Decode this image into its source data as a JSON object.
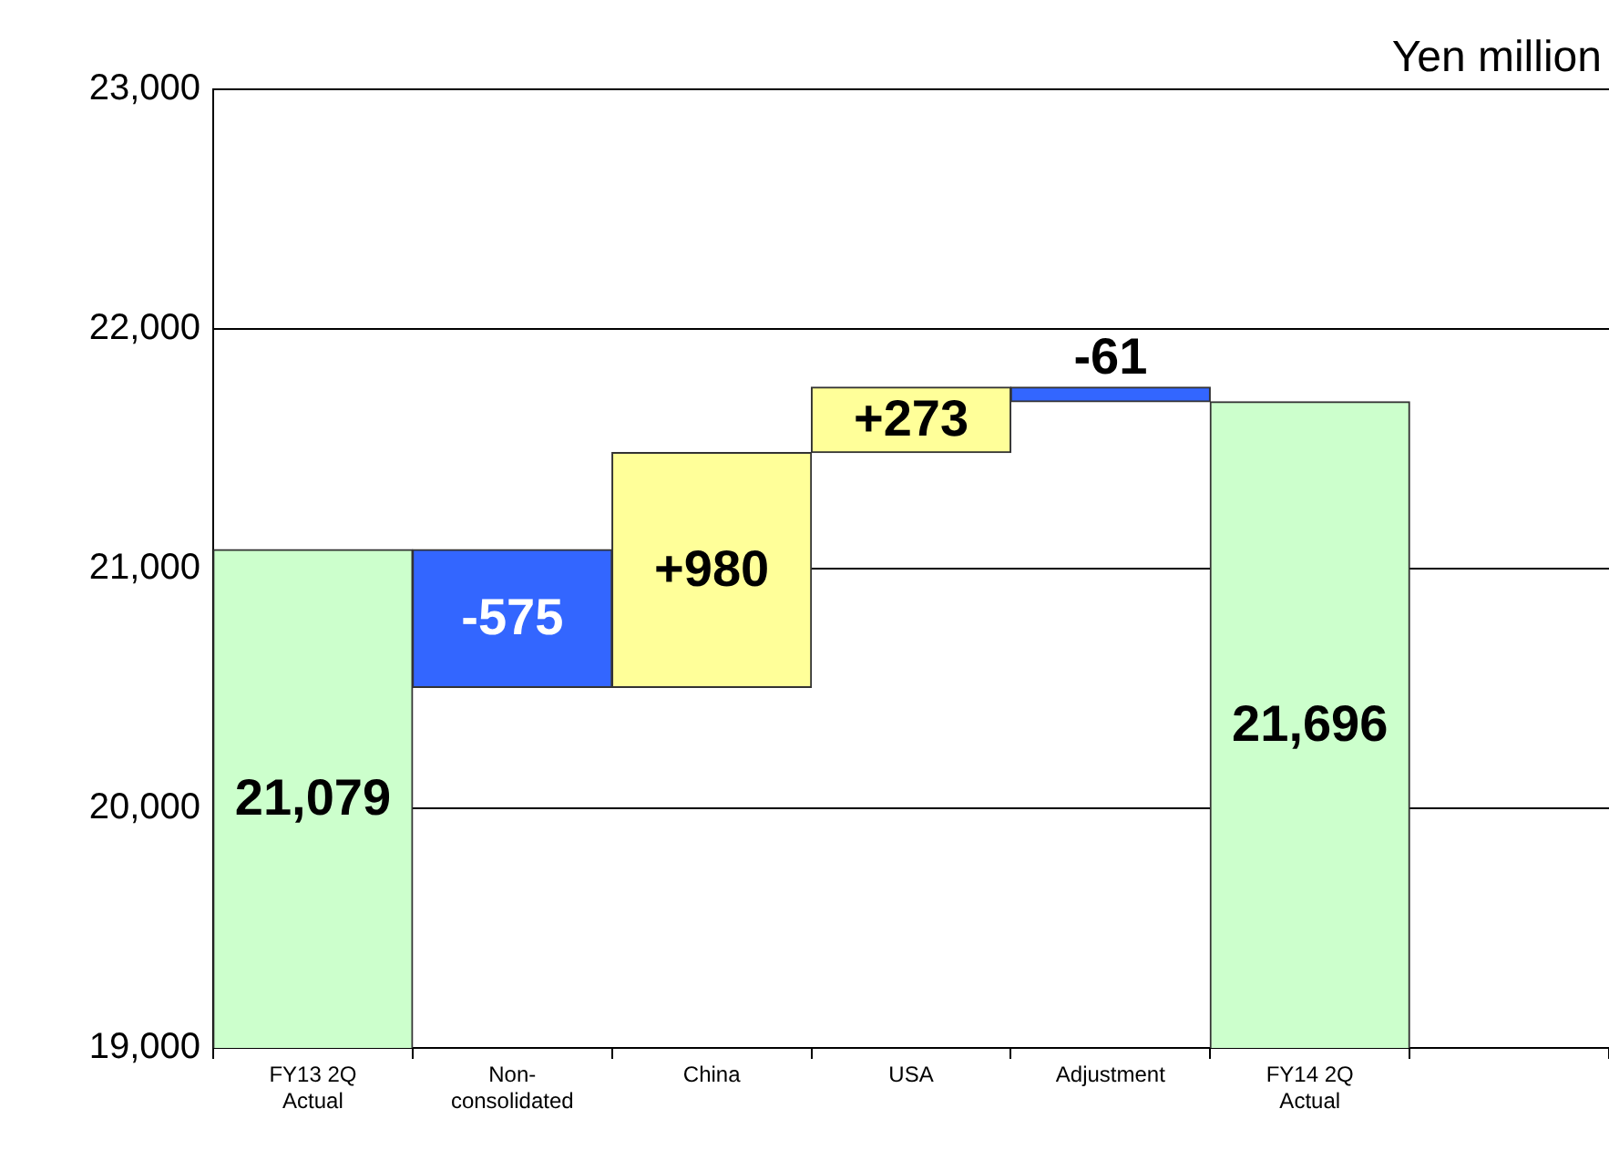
{
  "chart_data": {
    "type": "bar",
    "ylabel": "Yen million",
    "categories": [
      "FY13 2Q Actual",
      "Non-consolidated",
      "China",
      "USA",
      "Adjustment",
      "FY14 2Q Actual",
      null
    ],
    "values": [
      21079,
      -575,
      980,
      273,
      -61,
      21696,
      null
    ],
    "base": [
      null,
      21079,
      20504,
      21484,
      21757,
      null,
      null
    ],
    "colors": [
      "#ccffcc",
      "#3366ff",
      "#ffff99",
      "#ffff99",
      "#3366ff",
      "#ccffcc",
      null
    ],
    "value_labels": [
      "21,079",
      "-575",
      "+980",
      "+273",
      "-61",
      "21,696",
      null
    ],
    "ylim": [
      19000,
      23000
    ],
    "yticks": [
      {
        "value": 19000,
        "label": "19,000"
      },
      {
        "value": 20000,
        "label": "20,000"
      },
      {
        "value": 21000,
        "label": "21,000"
      },
      {
        "value": 22000,
        "label": "22,000"
      },
      {
        "value": 23000,
        "label": "23,000"
      }
    ],
    "grid": "y",
    "legend": false
  }
}
